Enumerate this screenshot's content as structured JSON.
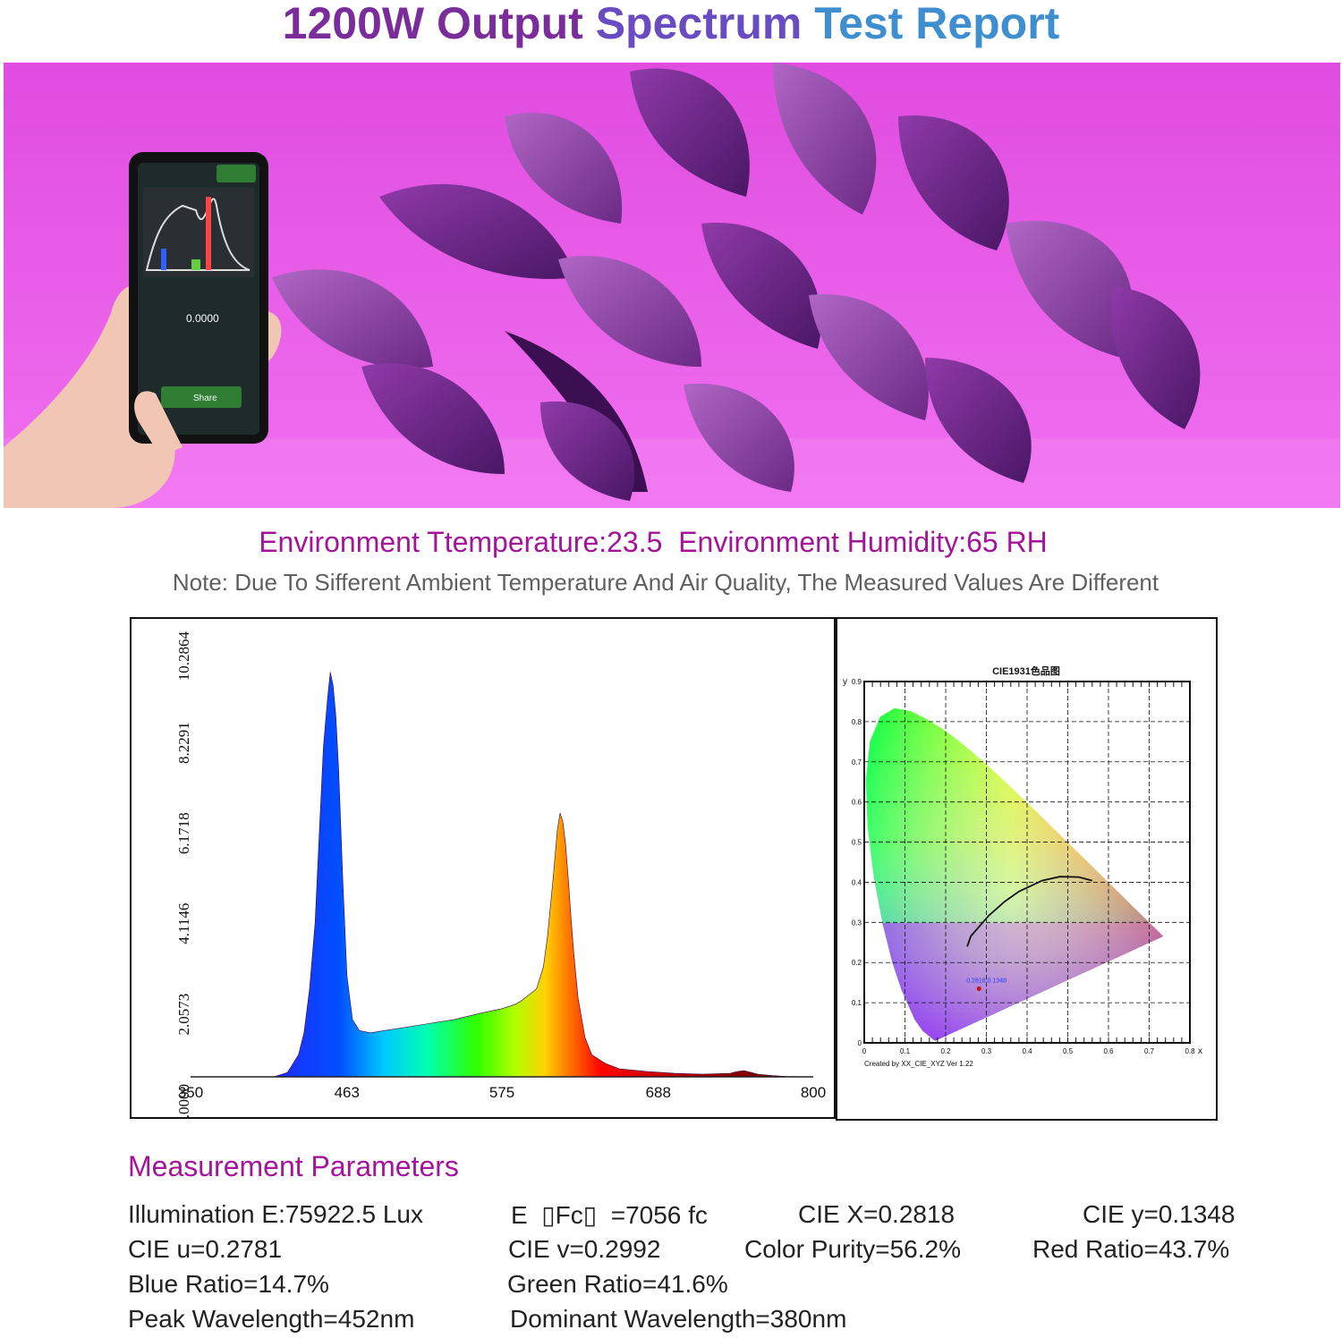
{
  "title": {
    "part1": "1200W Output",
    "part2": "Spectrum",
    "part3": "Test Report"
  },
  "phone_screen": {
    "value_text": "0.0000",
    "button_label": "Share"
  },
  "environment_line": "Environment Ttemperature:23.5  Environment Humidity:65 RH",
  "note_line": "Note: Due To Sifferent Ambient Temperature And Air Quality, The Measured Values Are Different",
  "chart_data": [
    {
      "type": "area",
      "title": "",
      "xlabel": "",
      "ylabel": "",
      "x_ticks": [
        "350",
        "463",
        "575",
        "688",
        "800"
      ],
      "y_ticks": [
        "0.0000",
        "2.0573",
        "4.1146",
        "6.1718",
        "8.2291",
        "10.2864"
      ],
      "xlim": [
        350,
        800
      ],
      "ylim": [
        0,
        10.2864
      ],
      "x": [
        375,
        395,
        410,
        420,
        428,
        432,
        436,
        440,
        443,
        446,
        449,
        451,
        453,
        455,
        457,
        460,
        463,
        467,
        472,
        480,
        490,
        500,
        520,
        540,
        560,
        575,
        585,
        590,
        600,
        605,
        608,
        612,
        615,
        617,
        619,
        621,
        623,
        625,
        627,
        630,
        635,
        640,
        650,
        660,
        680,
        700,
        720,
        740,
        745,
        750,
        755,
        760,
        770,
        780,
        800
      ],
      "y": [
        0.0,
        0.0,
        0.0,
        0.1,
        0.5,
        1.0,
        2.0,
        3.5,
        5.5,
        7.5,
        8.6,
        9.2,
        8.9,
        8.2,
        7.0,
        4.5,
        2.3,
        1.3,
        1.05,
        1.0,
        1.05,
        1.1,
        1.2,
        1.3,
        1.45,
        1.55,
        1.65,
        1.75,
        2.0,
        2.5,
        3.2,
        4.5,
        5.6,
        6.0,
        5.8,
        5.3,
        4.5,
        3.6,
        2.8,
        1.8,
        0.9,
        0.5,
        0.3,
        0.18,
        0.12,
        0.08,
        0.06,
        0.08,
        0.12,
        0.14,
        0.1,
        0.06,
        0.03,
        0.01,
        0.0
      ]
    },
    {
      "type": "scatter",
      "title": "CIE1931色品图",
      "xlabel": "x",
      "ylabel": "y",
      "footer": "Created by XX_CIE_XYZ Ver 1.22",
      "x_ticks": [
        "0",
        "0.1",
        "0.2",
        "0.3",
        "0.4",
        "0.5",
        "0.6",
        "0.7",
        "0.8"
      ],
      "y_ticks": [
        "0",
        "0.1",
        "0.2",
        "0.3",
        "0.4",
        "0.5",
        "0.6",
        "0.7",
        "0.8",
        "0.9"
      ],
      "xlim": [
        0,
        0.8
      ],
      "ylim": [
        0,
        0.9
      ],
      "points": [
        {
          "x": 0.2818,
          "y": 0.1348,
          "label": "0.2818,0.1348"
        }
      ],
      "planckian_locus": {
        "x": [
          0.253,
          0.262,
          0.281,
          0.306,
          0.345,
          0.38,
          0.437,
          0.48,
          0.527,
          0.56
        ],
        "y": [
          0.24,
          0.266,
          0.288,
          0.317,
          0.352,
          0.377,
          0.404,
          0.414,
          0.413,
          0.404
        ]
      }
    }
  ],
  "params_title": "Measurement Parameters",
  "params": {
    "illumination": "Illumination E:75922.5 Lux",
    "e_fc": "E  ▯Fc▯  =7056 fc",
    "cie_x": "CIE X=0.2818",
    "cie_y": "CIE y=0.1348",
    "cie_u": "CIE u=0.2781",
    "cie_v": "CIE v=0.2992",
    "color_purity": "Color Purity=56.2%",
    "red_ratio": "Red Ratio=43.7%",
    "blue_ratio": "Blue Ratio=14.7%",
    "green_ratio": "Green Ratio=41.6%",
    "peak_wavelength": "Peak Wavelength=452nm",
    "dominant_wavelength": "Dominant Wavelength=380nm"
  }
}
